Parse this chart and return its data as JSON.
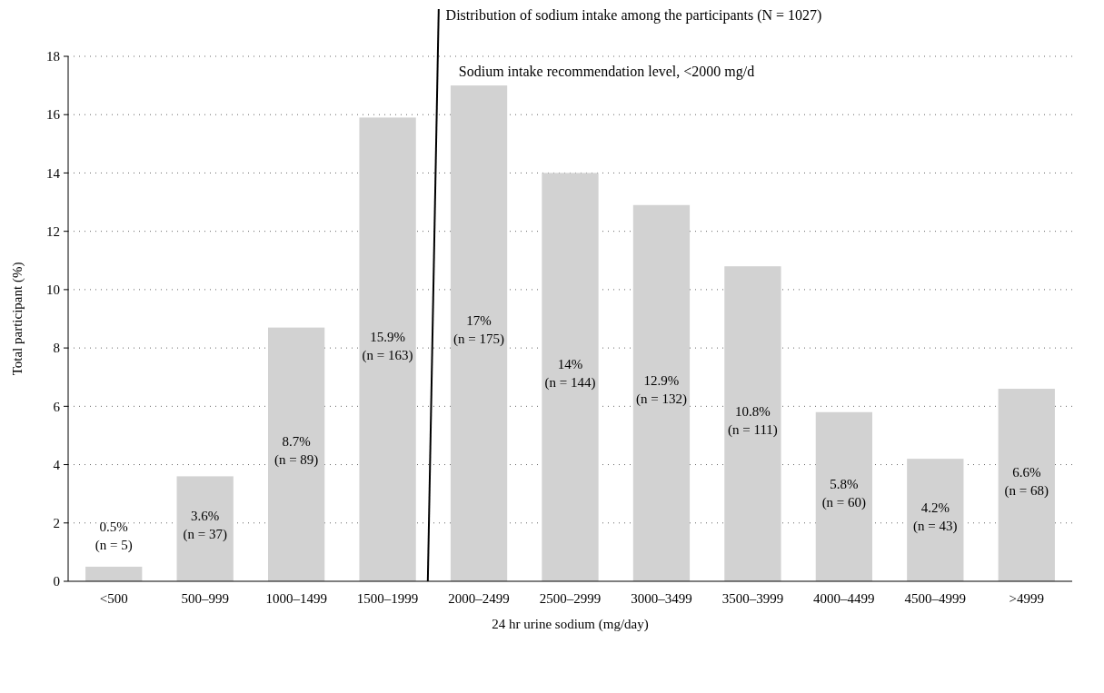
{
  "chart_data": {
    "type": "bar",
    "title": "Distribution of sodium intake among the participants (N = 1027)",
    "xlabel": "24 hr urine sodium (mg/day)",
    "ylabel": "Total participant (%)",
    "categories": [
      "<500",
      "500–999",
      "1000–1499",
      "1500–1999",
      "2000–2499",
      "2500–2999",
      "3000–3499",
      "3500–3999",
      "4000–4499",
      "4500–4999",
      ">4999"
    ],
    "values": [
      0.5,
      3.6,
      8.7,
      15.9,
      17,
      14,
      12.9,
      10.8,
      5.8,
      4.2,
      6.6
    ],
    "value_labels": [
      "0.5% (n = 5)",
      "3.6% (n = 37)",
      "8.7% (n = 89)",
      "15.9% (n = 163)",
      "17% (n = 175)",
      "14% (n = 144)",
      "12.9% (n = 132)",
      "10.8% (n = 111)",
      "5.8% (n = 60)",
      "4.2% (n = 43)",
      "6.6% (n = 68)"
    ],
    "color": "#d2d2d2",
    "ylim": [
      0,
      18
    ],
    "yticks": [
      0,
      2,
      4,
      6,
      8,
      10,
      12,
      14,
      16,
      18
    ],
    "grid": "y",
    "annotations": [
      "Sodium intake recommendation level, <2000 mg/d"
    ]
  }
}
